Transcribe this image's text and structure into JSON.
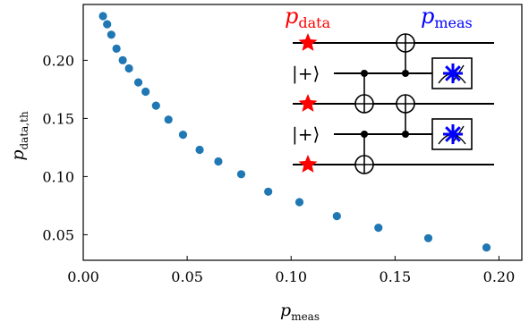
{
  "chart_data": {
    "type": "scatter",
    "x_axis": {
      "label": {
        "main": "p",
        "sub": "meas"
      },
      "ticks": [
        0.0,
        0.05,
        0.1,
        0.15,
        0.2
      ],
      "tick_labels": [
        "0.00",
        "0.05",
        "0.10",
        "0.15",
        "0.20"
      ],
      "range": [
        0.0,
        0.211
      ]
    },
    "y_axis": {
      "label": {
        "main": "p",
        "sub": "data,th"
      },
      "ticks": [
        0.05,
        0.1,
        0.15,
        0.2
      ],
      "tick_labels": [
        "0.05",
        "0.10",
        "0.15",
        "0.20"
      ],
      "range": [
        0.028,
        0.248
      ]
    },
    "grid": false,
    "series": [
      {
        "color": "#1f77b4",
        "x": [
          0.0095,
          0.0115,
          0.0135,
          0.016,
          0.019,
          0.022,
          0.0265,
          0.03,
          0.035,
          0.041,
          0.048,
          0.056,
          0.065,
          0.076,
          0.089,
          0.104,
          0.122,
          0.142,
          0.166,
          0.194
        ],
        "y": [
          0.238,
          0.231,
          0.222,
          0.21,
          0.2,
          0.193,
          0.181,
          0.173,
          0.161,
          0.149,
          0.136,
          0.123,
          0.113,
          0.102,
          0.087,
          0.078,
          0.066,
          0.056,
          0.047,
          0.039
        ]
      }
    ]
  },
  "inset": {
    "label_left": {
      "main": "p",
      "sub": "data",
      "color": "#ff0000"
    },
    "label_right": {
      "main": "p",
      "sub": "meas",
      "color": "#0000ff"
    },
    "ket_labels": [
      "|+⟩",
      "|+⟩"
    ],
    "star_colors": {
      "data": "#ff0000",
      "meas": "#0000ff"
    },
    "icons": [
      "star-icon",
      "meter-icon",
      "cnot-target-icon",
      "control-dot-icon"
    ]
  }
}
